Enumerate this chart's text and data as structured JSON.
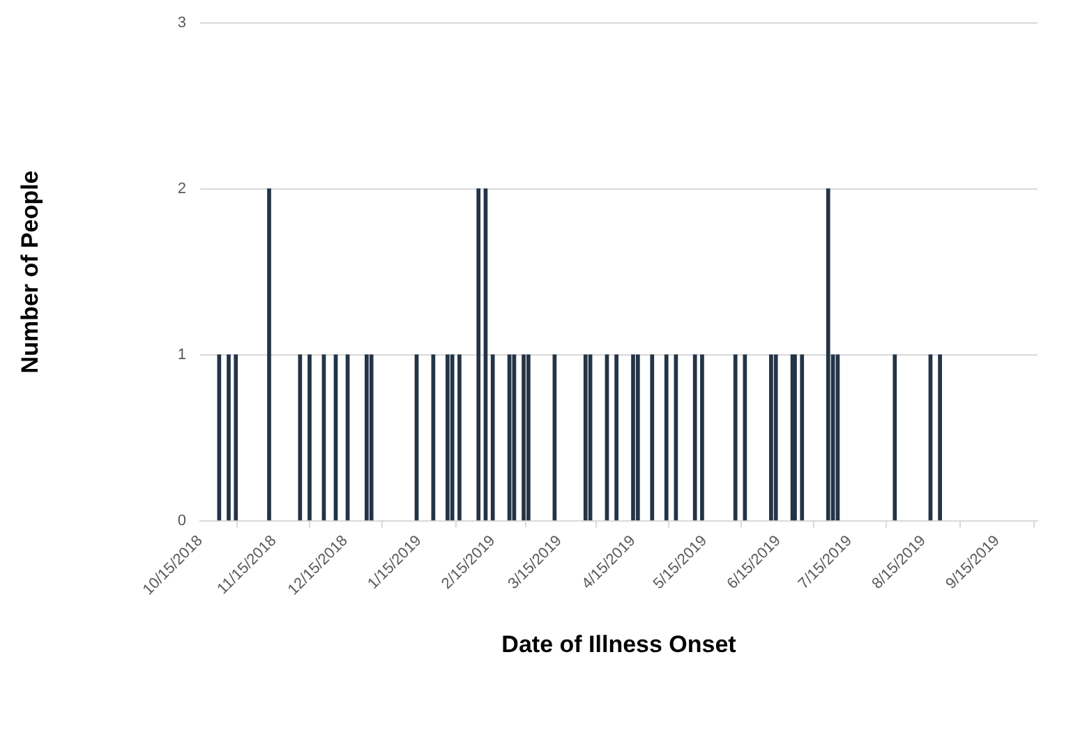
{
  "chart_data": {
    "type": "bar",
    "xlabel": "Date of Illness Onset",
    "ylabel": "Number of People",
    "color": "#243447",
    "x": [
      "2018-10-23",
      "2018-10-27",
      "2018-10-30",
      "2018-11-13",
      "2018-11-26",
      "2018-11-30",
      "2018-12-06",
      "2018-12-11",
      "2018-12-16",
      "2018-12-24",
      "2018-12-26",
      "2019-01-14",
      "2019-01-21",
      "2019-01-27",
      "2019-01-29",
      "2019-02-01",
      "2019-02-09",
      "2019-02-12",
      "2019-02-15",
      "2019-02-22",
      "2019-02-24",
      "2019-02-28",
      "2019-03-02",
      "2019-03-13",
      "2019-03-26",
      "2019-03-28",
      "2019-04-04",
      "2019-04-08",
      "2019-04-15",
      "2019-04-17",
      "2019-04-23",
      "2019-04-29",
      "2019-05-03",
      "2019-05-11",
      "2019-05-14",
      "2019-05-28",
      "2019-06-01",
      "2019-06-12",
      "2019-06-14",
      "2019-06-21",
      "2019-06-22",
      "2019-06-25",
      "2019-07-06",
      "2019-07-08",
      "2019-07-10",
      "2019-08-03",
      "2019-08-18",
      "2019-08-22"
    ],
    "values": [
      1,
      1,
      1,
      2,
      1,
      1,
      1,
      1,
      1,
      1,
      1,
      1,
      1,
      1,
      1,
      1,
      2,
      2,
      1,
      1,
      1,
      1,
      1,
      1,
      1,
      1,
      1,
      1,
      1,
      1,
      1,
      1,
      1,
      1,
      1,
      1,
      1,
      1,
      1,
      1,
      1,
      1,
      2,
      1,
      1,
      1,
      1,
      1
    ],
    "xlim": [
      "2018-10-15",
      "2019-10-02"
    ],
    "xticks": [
      {
        "value": "2018-10-15",
        "label": "10/15/2018"
      },
      {
        "value": "2018-11-15",
        "label": "11/15/2018"
      },
      {
        "value": "2018-12-15",
        "label": "12/15/2018"
      },
      {
        "value": "2019-01-15",
        "label": "1/15/2019"
      },
      {
        "value": "2019-02-15",
        "label": "2/15/2019"
      },
      {
        "value": "2019-03-15",
        "label": "3/15/2019"
      },
      {
        "value": "2019-04-15",
        "label": "4/15/2019"
      },
      {
        "value": "2019-05-15",
        "label": "5/15/2019"
      },
      {
        "value": "2019-06-15",
        "label": "6/15/2019"
      },
      {
        "value": "2019-07-15",
        "label": "7/15/2019"
      },
      {
        "value": "2019-08-15",
        "label": "8/15/2019"
      },
      {
        "value": "2019-09-15",
        "label": "9/15/2019"
      }
    ],
    "ylim": [
      0,
      3
    ],
    "yticks": [
      0,
      1,
      2,
      3
    ],
    "grid": "y",
    "legend": false
  }
}
